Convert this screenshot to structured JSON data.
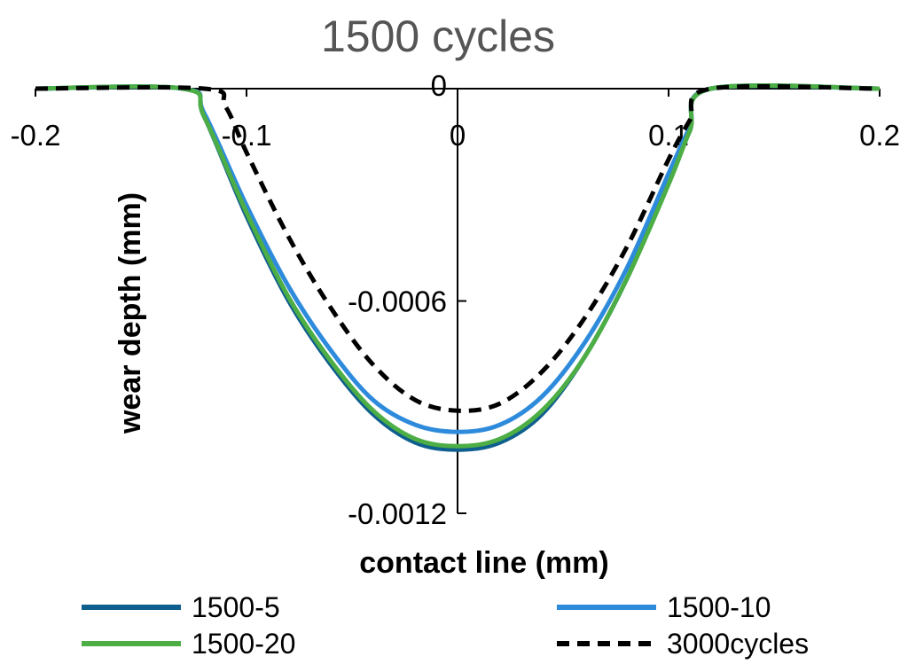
{
  "chart_data": {
    "type": "line",
    "title": "1500 cycles",
    "xlabel": "contact line (mm)",
    "ylabel": "wear depth (mm)",
    "xlim": [
      -0.2,
      0.2
    ],
    "ylim": [
      -0.0012,
      0
    ],
    "grid": false,
    "legend_position": "bottom",
    "x_ticks": [
      -0.2,
      -0.1,
      0,
      0.1,
      0.2
    ],
    "x_tick_labels": [
      "-0.2",
      "-0.1",
      "0",
      "0.1",
      "0.2"
    ],
    "y_ticks": [
      0,
      -0.0006,
      -0.0012
    ],
    "y_tick_labels": [
      "0",
      "-0.0006",
      "-0.0012"
    ],
    "series": [
      {
        "name": "1500-5",
        "color": "#0e5e8e",
        "dash": "solid",
        "x": [
          -0.2,
          -0.13,
          -0.12,
          -0.1,
          -0.08,
          -0.06,
          -0.04,
          -0.02,
          0,
          0.02,
          0.04,
          0.06,
          0.08,
          0.1,
          0.11,
          0.12,
          0.2
        ],
        "y": [
          0,
          0,
          -8e-05,
          -0.00036,
          -0.0006,
          -0.00078,
          -0.00092,
          -0.001,
          -0.00102,
          -0.001,
          -0.00092,
          -0.00076,
          -0.00054,
          -0.00026,
          -0.00012,
          0,
          0
        ]
      },
      {
        "name": "1500-10",
        "color": "#2e8bdc",
        "dash": "solid",
        "x": [
          -0.2,
          -0.13,
          -0.12,
          -0.1,
          -0.08,
          -0.06,
          -0.04,
          -0.02,
          0,
          0.02,
          0.04,
          0.06,
          0.08,
          0.1,
          0.11,
          0.12,
          0.2
        ],
        "y": [
          0,
          0,
          -7e-05,
          -0.00033,
          -0.00056,
          -0.00074,
          -0.00088,
          -0.00095,
          -0.00097,
          -0.00095,
          -0.00087,
          -0.00072,
          -0.00051,
          -0.00024,
          -0.00011,
          0,
          0
        ]
      },
      {
        "name": "1500-20",
        "color": "#4cae45",
        "dash": "solid",
        "x": [
          -0.2,
          -0.13,
          -0.12,
          -0.1,
          -0.08,
          -0.06,
          -0.04,
          -0.02,
          0,
          0.02,
          0.04,
          0.06,
          0.08,
          0.1,
          0.11,
          0.12,
          0.2
        ],
        "y": [
          0,
          0,
          -8e-05,
          -0.00035,
          -0.00059,
          -0.00077,
          -0.00091,
          -0.00099,
          -0.00101,
          -0.00099,
          -0.00091,
          -0.00076,
          -0.00054,
          -0.00027,
          -0.00012,
          0,
          0
        ]
      },
      {
        "name": "3000cycles",
        "color": "#000000",
        "dash": "dashed",
        "x": [
          -0.2,
          -0.12,
          -0.11,
          -0.1,
          -0.08,
          -0.06,
          -0.04,
          -0.02,
          0,
          0.02,
          0.04,
          0.06,
          0.08,
          0.1,
          0.11,
          0.12,
          0.2
        ],
        "y": [
          0,
          0,
          -5e-05,
          -0.00018,
          -0.00042,
          -0.00062,
          -0.00078,
          -0.00088,
          -0.00091,
          -0.00089,
          -0.0008,
          -0.00065,
          -0.00045,
          -0.0002,
          -9e-05,
          0,
          0
        ]
      }
    ]
  }
}
